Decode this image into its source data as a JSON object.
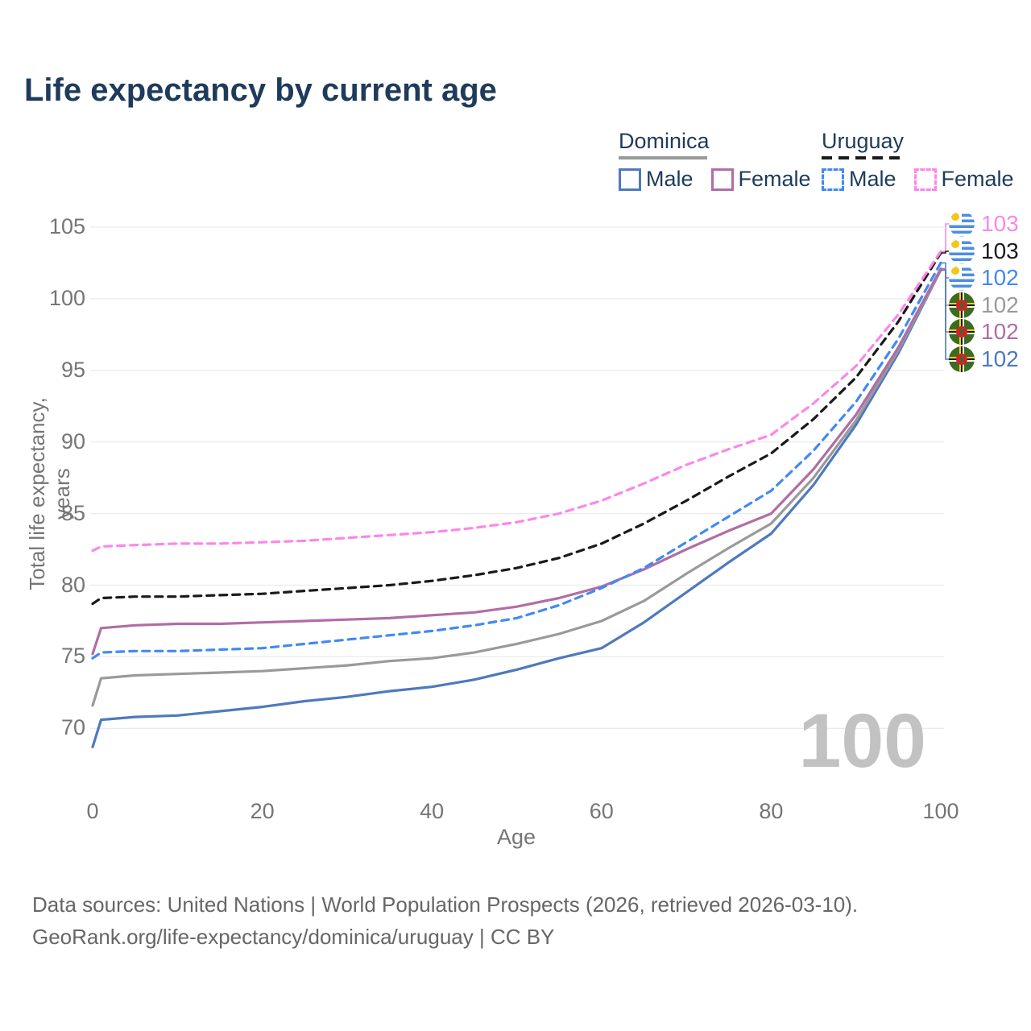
{
  "title": "Life expectancy by current age",
  "legend": {
    "dominica": {
      "country": "Dominica",
      "male": "Male",
      "female": "Female"
    },
    "uruguay": {
      "country": "Uruguay",
      "male": "Male",
      "female": "Female"
    }
  },
  "watermark": "100",
  "footer": {
    "line1": "Data sources: United Nations | World Population Prospects (2026, retrieved 2026-03-10).",
    "line2": "GeoRank.org/life-expectancy/dominica/uruguay | CC BY"
  },
  "colors": {
    "title": "#1e3b5c",
    "dominica_male": "#4e79bd",
    "dominica_all": "#9a9a9a",
    "dominica_female": "#b16da5",
    "uruguay_male": "#4189f5",
    "uruguay_all": "#1a1a1a",
    "uruguay_female": "#fb87e9",
    "gridline": "#ebebeb",
    "tick_text": "#757575"
  },
  "chart_data": {
    "type": "line",
    "title": "Life expectancy by current age",
    "xlabel": "Age",
    "ylabel": "Total life expectancy, years",
    "xlim": [
      0,
      100
    ],
    "ylim": [
      67.5,
      105.5
    ],
    "xticks": [
      0,
      20,
      40,
      60,
      80,
      100
    ],
    "yticks": [
      70,
      75,
      80,
      85,
      90,
      95,
      100,
      105
    ],
    "grid": "horizontal",
    "legend_position": "top-right",
    "x": [
      0,
      1,
      5,
      10,
      15,
      20,
      25,
      30,
      35,
      40,
      45,
      50,
      55,
      60,
      65,
      70,
      75,
      80,
      85,
      90,
      95,
      100
    ],
    "series": [
      {
        "name": "Dominica Male",
        "key": "dominica_male",
        "country": "Dominica",
        "sex": "Male",
        "style": "solid",
        "color": "#4e79bd",
        "values": [
          68.7,
          70.6,
          70.8,
          70.9,
          71.2,
          71.5,
          71.9,
          72.2,
          72.6,
          72.9,
          73.4,
          74.1,
          74.9,
          75.6,
          77.4,
          79.5,
          81.6,
          83.6,
          87.0,
          91.2,
          96.2,
          102.0
        ]
      },
      {
        "name": "Dominica (all)",
        "key": "dominica_all",
        "country": "Dominica",
        "sex": "All",
        "style": "solid",
        "color": "#9a9a9a",
        "values": [
          71.6,
          73.5,
          73.7,
          73.8,
          73.9,
          74.0,
          74.2,
          74.4,
          74.7,
          74.9,
          75.3,
          75.9,
          76.6,
          77.5,
          78.9,
          80.8,
          82.6,
          84.3,
          87.5,
          91.5,
          96.4,
          102.0
        ]
      },
      {
        "name": "Dominica Female",
        "key": "dominica_female",
        "country": "Dominica",
        "sex": "Female",
        "style": "solid",
        "color": "#b16da5",
        "values": [
          75.2,
          77.0,
          77.2,
          77.3,
          77.3,
          77.4,
          77.5,
          77.6,
          77.7,
          77.9,
          78.1,
          78.5,
          79.1,
          79.9,
          81.1,
          82.5,
          83.8,
          85.0,
          88.1,
          91.9,
          96.6,
          102.1
        ]
      },
      {
        "name": "Uruguay Male",
        "key": "uruguay_male",
        "country": "Uruguay",
        "sex": "Male",
        "style": "dashed",
        "color": "#4189f5",
        "values": [
          74.9,
          75.3,
          75.4,
          75.4,
          75.5,
          75.6,
          75.9,
          76.2,
          76.5,
          76.8,
          77.2,
          77.7,
          78.6,
          79.8,
          81.2,
          83.0,
          84.8,
          86.6,
          89.4,
          92.8,
          97.2,
          102.5
        ]
      },
      {
        "name": "Uruguay (all)",
        "key": "uruguay_all",
        "country": "Uruguay",
        "sex": "All",
        "style": "dashed",
        "color": "#1a1a1a",
        "values": [
          78.7,
          79.1,
          79.2,
          79.2,
          79.3,
          79.4,
          79.6,
          79.8,
          80.0,
          80.3,
          80.7,
          81.2,
          81.9,
          82.9,
          84.3,
          85.9,
          87.6,
          89.2,
          91.6,
          94.5,
          98.4,
          103.2
        ]
      },
      {
        "name": "Uruguay Female",
        "key": "uruguay_female",
        "country": "Uruguay",
        "sex": "Female",
        "style": "dashed",
        "color": "#fb87e9",
        "values": [
          82.4,
          82.7,
          82.8,
          82.9,
          82.9,
          83.0,
          83.1,
          83.3,
          83.5,
          83.7,
          84.0,
          84.4,
          85.0,
          85.9,
          87.1,
          88.4,
          89.5,
          90.5,
          92.7,
          95.3,
          98.9,
          103.3
        ]
      }
    ],
    "end_labels": [
      {
        "series_key": "uruguay_female",
        "label": "103",
        "flag": "uruguay"
      },
      {
        "series_key": "uruguay_all",
        "label": "103",
        "flag": "uruguay"
      },
      {
        "series_key": "uruguay_male",
        "label": "102",
        "flag": "uruguay"
      },
      {
        "series_key": "dominica_all",
        "label": "102",
        "flag": "dominica"
      },
      {
        "series_key": "dominica_female",
        "label": "102",
        "flag": "dominica"
      },
      {
        "series_key": "dominica_male",
        "label": "102",
        "flag": "dominica"
      }
    ]
  }
}
